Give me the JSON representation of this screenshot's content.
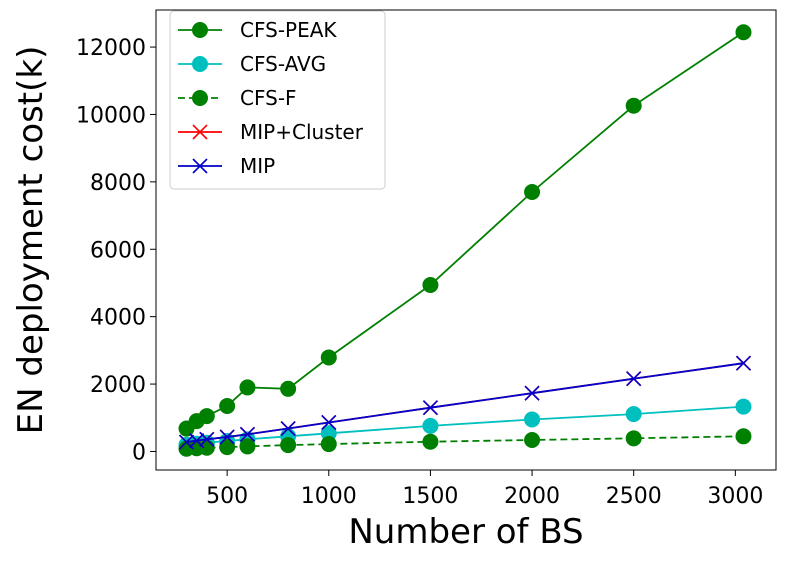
{
  "chart_data": {
    "type": "line",
    "title": "",
    "xlabel": "Number of BS",
    "ylabel": "EN deployment cost(k)",
    "xlim": [
      150,
      3200
    ],
    "ylim": [
      -550,
      13100
    ],
    "xticks": [
      500,
      1000,
      1500,
      2000,
      2500,
      3000
    ],
    "yticks": [
      0,
      2000,
      4000,
      6000,
      8000,
      10000,
      12000
    ],
    "grid": false,
    "legend_position": "top-left",
    "series": [
      {
        "name": "CFS-PEAK",
        "color": "#008000",
        "marker": "circle",
        "linestyle": "solid",
        "x": [
          300,
          350,
          400,
          500,
          600,
          800,
          1000,
          1500,
          2000,
          2500,
          3040
        ],
        "y": [
          680,
          900,
          1050,
          1350,
          1900,
          1860,
          2790,
          4940,
          7700,
          10260,
          12440
        ]
      },
      {
        "name": "CFS-AVG",
        "color": "#00BFBF",
        "marker": "circle",
        "linestyle": "solid",
        "x": [
          300,
          350,
          400,
          500,
          600,
          800,
          1000,
          1500,
          2000,
          2500,
          3040
        ],
        "y": [
          200,
          230,
          260,
          310,
          360,
          450,
          540,
          760,
          950,
          1110,
          1330
        ]
      },
      {
        "name": "CFS-F",
        "color": "#008000",
        "marker": "circle",
        "linestyle": "dashed",
        "x": [
          300,
          350,
          400,
          500,
          600,
          800,
          1000,
          1500,
          2000,
          2500,
          3040
        ],
        "y": [
          80,
          95,
          110,
          130,
          150,
          190,
          220,
          290,
          340,
          390,
          450
        ]
      },
      {
        "name": "MIP+Cluster",
        "color": "#FF0000",
        "marker": "x",
        "linestyle": "solid",
        "x": [
          300,
          350,
          400,
          500,
          600,
          800,
          1000,
          1500,
          2000,
          2500,
          3040
        ],
        "y": [
          280,
          320,
          360,
          430,
          510,
          680,
          860,
          1300,
          1730,
          2160,
          2620
        ]
      },
      {
        "name": "MIP",
        "color": "#0000CC",
        "marker": "x",
        "linestyle": "solid",
        "x": [
          300,
          350,
          400,
          500,
          600,
          800,
          1000,
          1500,
          2000,
          2500,
          3040
        ],
        "y": [
          280,
          320,
          360,
          430,
          510,
          680,
          860,
          1300,
          1730,
          2160,
          2620
        ]
      }
    ]
  }
}
